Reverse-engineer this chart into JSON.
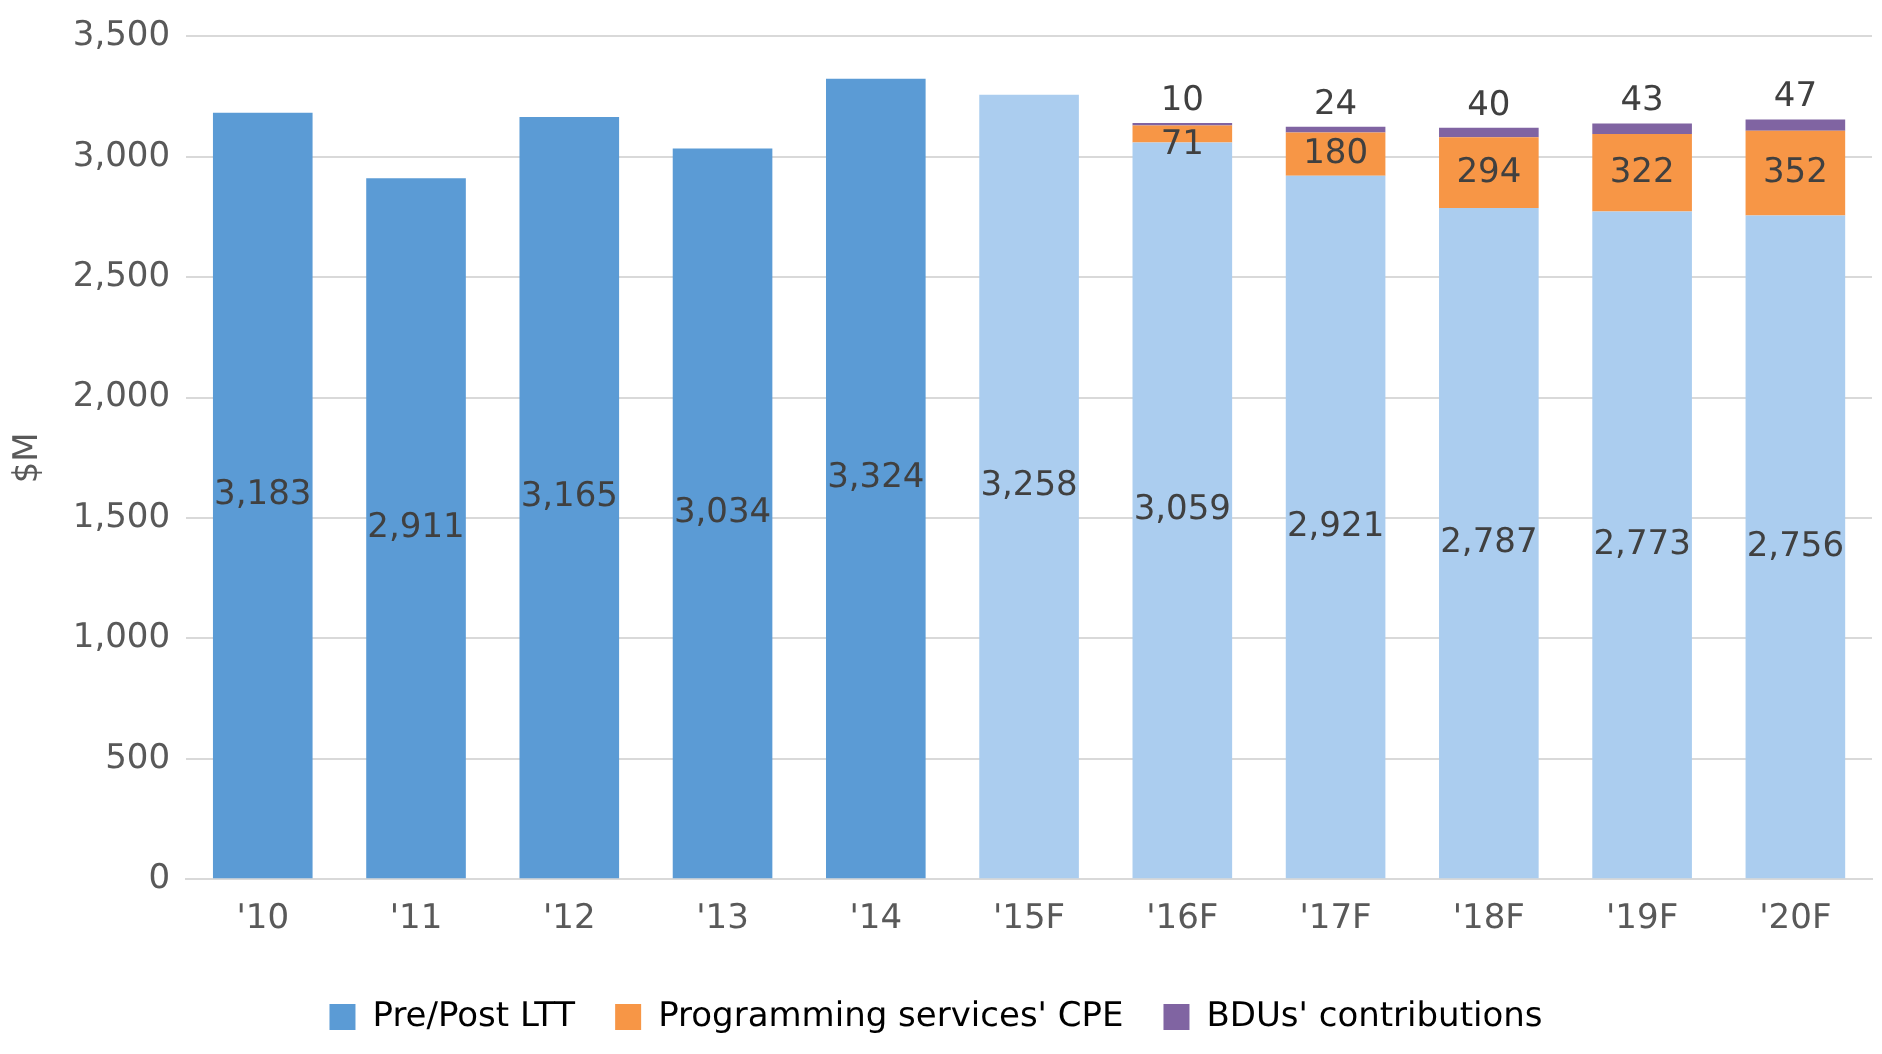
{
  "chart_data": {
    "type": "bar",
    "stacked": true,
    "ylabel": "$M",
    "categories": [
      "'10",
      "'11",
      "'12",
      "'13",
      "'14",
      "'15F",
      "'16F",
      "'17F",
      "'18F",
      "'19F",
      "'20F"
    ],
    "series": [
      {
        "name": "Pre/Post LTT",
        "color": "#5b9bd5",
        "colors": [
          "#5b9bd5",
          "#5b9bd5",
          "#5b9bd5",
          "#5b9bd5",
          "#5b9bd5",
          "#abcdef",
          "#abcdef",
          "#abcdef",
          "#abcdef",
          "#abcdef",
          "#abcdef"
        ],
        "values": [
          3183,
          2911,
          3165,
          3034,
          3324,
          3258,
          3059,
          2921,
          2787,
          2773,
          2756
        ],
        "value_labels": [
          "3,183",
          "2,911",
          "3,165",
          "3,034",
          "3,324",
          "3,258",
          "3,059",
          "2,921",
          "2,787",
          "2,773",
          "2,756"
        ]
      },
      {
        "name": "Programming services' CPE",
        "color": "#f79646",
        "values": [
          null,
          null,
          null,
          null,
          null,
          null,
          71,
          180,
          294,
          322,
          352
        ],
        "value_labels": [
          null,
          null,
          null,
          null,
          null,
          null,
          "71",
          "180",
          "294",
          "322",
          "352"
        ]
      },
      {
        "name": "BDUs' contributions",
        "color": "#8064a2",
        "values": [
          null,
          null,
          null,
          null,
          null,
          null,
          10,
          24,
          40,
          43,
          47
        ],
        "value_labels": [
          null,
          null,
          null,
          null,
          null,
          null,
          "10",
          "24",
          "40",
          "43",
          "47"
        ]
      }
    ],
    "ylim": [
      0,
      3500
    ],
    "yticks": [
      0,
      500,
      {
        "value": 1000,
        "label": "1,000"
      },
      {
        "value": 1500,
        "label": "1,500"
      },
      {
        "value": 2000,
        "label": "2,000"
      },
      {
        "value": 2500,
        "label": "2,500"
      },
      {
        "value": 3000,
        "label": "3,000"
      },
      {
        "value": 3500,
        "label": "3,500"
      }
    ],
    "grid": "y",
    "legend": "bottom"
  }
}
